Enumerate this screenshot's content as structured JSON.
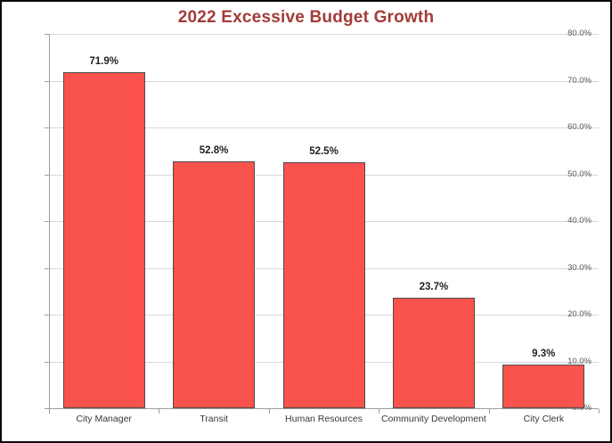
{
  "window": {
    "background_color": "#ffffff",
    "border_color": "#0a0a0a"
  },
  "chart_data": {
    "type": "bar",
    "title": "2022 Excessive Budget Growth",
    "title_color": "#a23b39",
    "categories": [
      "City Manager",
      "Transit",
      "Human Resources",
      "Community Development",
      "City Clerk"
    ],
    "values": [
      71.9,
      52.8,
      52.5,
      23.7,
      9.3
    ],
    "data_labels": [
      "71.9%",
      "52.8%",
      "52.5%",
      "23.7%",
      "9.3%"
    ],
    "xlabel": "",
    "ylabel": "",
    "ylim": [
      0,
      80
    ],
    "ytick_step": 10,
    "ytick_labels": [
      "0.0%",
      "10.0%",
      "20.0%",
      "30.0%",
      "40.0%",
      "50.0%",
      "60.0%",
      "70.0%",
      "80.0%"
    ],
    "grid": true,
    "legend_position": "none",
    "bar_color": "#fa524d",
    "bar_border_color": "#4d4d4d",
    "gridline_color": "#d9d9d9",
    "axis_color": "#9e9e9e",
    "ytick_label_color": "#595959",
    "category_label_color": "#383838",
    "data_label_color": "#1f1f1f"
  }
}
